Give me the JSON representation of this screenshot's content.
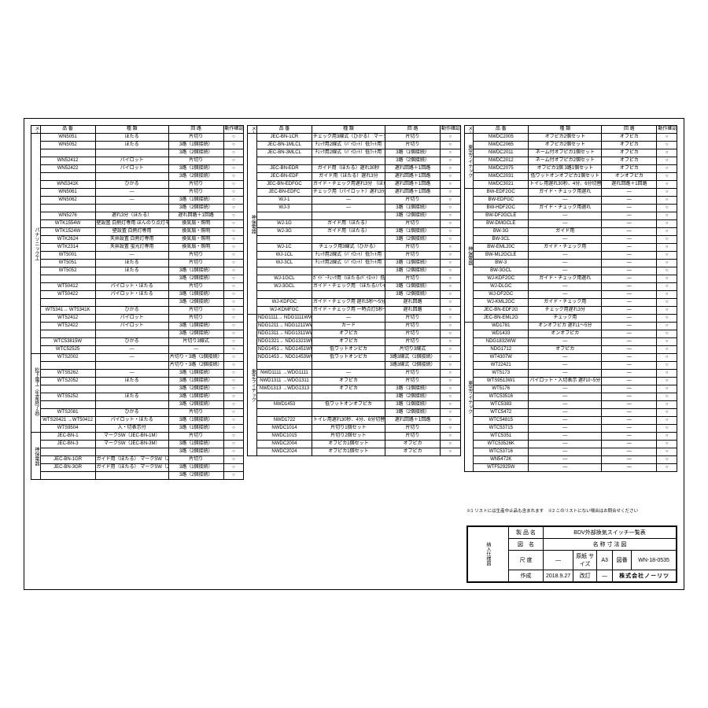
{
  "headers": {
    "maker": "メーカー",
    "part": "品 番",
    "type": "種 類",
    "circuit": "回 路",
    "check": "動作確認"
  },
  "col1_groups": [
    {
      "maker": "パナソニック工",
      "rows": [
        [
          "WN5051",
          "ほたる",
          "片切り",
          "○"
        ],
        [
          "WN5052",
          "ほたる",
          "3路（1個接続）",
          "○"
        ],
        [
          "",
          "",
          "3路（2個接続）",
          "○"
        ],
        [
          "WN52412",
          "パイロット",
          "片切り",
          "○"
        ],
        [
          "WN52422",
          "パイロット",
          "3路（1個接続）",
          "○"
        ],
        [
          "",
          "",
          "3路（2個接続）",
          "○"
        ],
        [
          "WN5341K",
          "ひかる",
          "片切り",
          "○"
        ],
        [
          "WN5061",
          "—",
          "片切り",
          "○"
        ],
        [
          "WN5062",
          "—",
          "3路（1個接続）",
          "○"
        ],
        [
          "",
          "",
          "3路（2個接続）",
          "○"
        ],
        [
          "WN5276",
          "遅れ3分（ほたる）",
          "遅れ回路＋1回路",
          "○"
        ],
        [
          "WTK1554W",
          "壁設置 白熱灯専用\nほんのり点灯モード付",
          "換気扇・照明",
          "○"
        ],
        [
          "WTK1524W",
          "壁設置 白熱灯専用",
          "換気扇・照明",
          "○"
        ],
        [
          "WTK2624",
          "天井設置 白熱灯専用",
          "換気扇・照明",
          "○"
        ],
        [
          "WTK2314",
          "天井設置 蛍光灯専用",
          "換気扇・照明",
          "○"
        ],
        [
          "WT5001",
          "—",
          "片切り",
          "○"
        ],
        [
          "WT5051",
          "ほたる",
          "片切り",
          "○"
        ],
        [
          "WT5052",
          "ほたる",
          "3路（1個接続）",
          "○"
        ],
        [
          "",
          "",
          "3路（2個接続）",
          "○"
        ],
        [
          "WT50412",
          "パイロット・ほたる",
          "片切り",
          "○"
        ],
        [
          "WT50422",
          "パイロット・ほたる",
          "3路（1個接続）",
          "○"
        ],
        [
          "",
          "",
          "3路（2個接続）",
          "○"
        ],
        [
          "WT5341→\nWT5341K",
          "ひかる",
          "片切り",
          "○"
        ],
        [
          "WT52412",
          "パイロット",
          "片切り",
          "○"
        ],
        [
          "WT52422",
          "パイロット",
          "3路（1個接続）",
          "○"
        ],
        [
          "",
          "",
          "3路（2個接続）",
          "○"
        ],
        [
          "WTC53815W",
          "ひかる",
          "片切り3線式",
          "○"
        ],
        [
          "WTC52525",
          "—",
          "—",
          "○"
        ]
      ]
    },
    {
      "maker": "松下電工（生産終了品）",
      "rows": [
        [
          "WTS2002",
          "—",
          "片切り・3路（1個接続）",
          "○"
        ],
        [
          "",
          "",
          "片切り・3路（2個接続）",
          "○"
        ],
        [
          "WTS5262",
          "—",
          "3路（1個接続）",
          "○"
        ],
        [
          "WTS2052",
          "ほたる",
          "3路（1個接続）",
          "○"
        ],
        [
          "",
          "",
          "3路（2個接続）",
          "○"
        ],
        [
          "WTS5252",
          "ほたる",
          "3路（1個接続）",
          "○"
        ],
        [
          "",
          "",
          "3路（2個接続）",
          "○"
        ],
        [
          "WTS2081",
          "ひかる",
          "片切り",
          "○"
        ],
        [
          "WTS20421\n→WT50412",
          "パイロット・ほたる",
          "3路（1個接続）",
          "○"
        ],
        [
          "WTS9504",
          "入・切表示付",
          "3路（1個接続）",
          "○"
        ]
      ]
    },
    {
      "maker": "神保電器",
      "rows": [
        [
          "JEC-BN-1",
          "マークSW（JEC-BN-1M）",
          "片切り",
          "○"
        ],
        [
          "JEC-BN-3",
          "マークSW（JEC-BN-3M）",
          "3路（1個接続）",
          "○"
        ],
        [
          "",
          "",
          "3路（2個接続）",
          "○"
        ],
        [
          "JEC-BN-1GR",
          "ガイド用（ほたる）\nマークSW（JEC-BN-1MGR）",
          "片切り",
          "○"
        ],
        [
          "JEC-BN-3GR",
          "ガイド用（ほたる）\nマークSW（JEC-BN-3MGR）",
          "3路（1個接続）",
          "○"
        ],
        [
          "",
          "",
          "3路（2個接続）",
          "○"
        ]
      ]
    }
  ],
  "col2_groups": [
    {
      "maker": "神保電器",
      "rows": [
        [
          "JEC-BN-1CR",
          "チェック用3線式（ひかる）\nマークSW（JEC-BN-1MCR）",
          "片切り",
          "○"
        ],
        [
          "JEC-BN-1MLCL",
          "ﾁｪｯｸ用2線式（ﾊﾟｲﾛｯﾄ）低ﾜｯﾄ用",
          "片切り",
          "○"
        ],
        [
          "JEC-BN-3MLCL",
          "ﾁｪｯｸ用2線式（ﾊﾟｲﾛｯﾄ）低ﾜｯﾄ用",
          "3路（1個接続）",
          "○"
        ],
        [
          "",
          "",
          "3路（2個接続）",
          "○"
        ],
        [
          "JEC-BN-EDR",
          "ガイド用（ほたる）遅れ30秒",
          "遅れ回路＋1回路",
          "○"
        ],
        [
          "JEC-BN-EDF",
          "ガイド用（ほたる）遅れ3分",
          "遅れ回路＋1回路",
          "○"
        ],
        [
          "JEC-BN-EDFGC",
          "ガイド・チェック用遅れ3分\n（ほたる/パイロット）",
          "遅れ回路＋1回路",
          "○"
        ],
        [
          "JEC-BN-EDFC",
          "チェック用（パイロット）遅れ3分",
          "遅れ回路＋1回路",
          "○"
        ],
        [
          "WJ-1",
          "—",
          "片切り",
          "○"
        ],
        [
          "WJ-3",
          "—",
          "3路（1個接続）",
          "○"
        ],
        [
          "",
          "",
          "3路（2個接続）",
          "○"
        ],
        [
          "WJ-1G",
          "ガイド用（ほたる）",
          "片切り",
          "○"
        ],
        [
          "WJ-3G",
          "ガイド用（ほたる）",
          "3路（1個接続）",
          "○"
        ],
        [
          "",
          "",
          "3路（2個接続）",
          "○"
        ],
        [
          "WJ-1C",
          "チェック用3線式（ひかる）",
          "片切り",
          "○"
        ],
        [
          "WJ-1CL",
          "ﾁｪｯｸ用2線式（ﾊﾟｲﾛｯﾄ）低ﾜｯﾄ用",
          "片切り",
          "○"
        ],
        [
          "WJ-3CL",
          "ﾁｪｯｸ用2線式（ﾊﾟｲﾛｯﾄ）低ﾜｯﾄ用",
          "3路（1個接続）",
          "○"
        ],
        [
          "",
          "",
          "3路（2個接続）",
          "○"
        ],
        [
          "WJ-1GCL",
          "ｶﾞｲﾄﾞ･ﾁｪｯｸ用（ほたる/ﾊﾟｲﾛｯﾄ）低ﾜｯﾄ用",
          "片切り",
          "○"
        ],
        [
          "WJ-3GCL",
          "ガイド・チェック用\n（ほたる/パイロット）低ワット用",
          "3路（1個接続）",
          "○"
        ],
        [
          "",
          "",
          "3路（2個接続）",
          "○"
        ],
        [
          "WJ-KDFGC",
          "ガイド・チェック用\n遅れ5秒〜5分可変\n（ほたる/パイロット）",
          "遅れ回路",
          "○"
        ],
        [
          "WJ-KDMFGC",
          "ガイド・チェック用\n一時点灯5秒〜5分可変\n（ほたる/パイロット）",
          "遅れ回路",
          "○"
        ]
      ]
    },
    {
      "maker": "東芝ライテック",
      "rows": [
        [
          "NDG1111→\nNDG1111WW",
          "—",
          "片切り",
          "○"
        ],
        [
          "NDG1211→\nNDG1211WW",
          "カード",
          "片切り",
          "○"
        ],
        [
          "NDG1311→\nNDG1311WW",
          "オフピカ",
          "片切り",
          "○"
        ],
        [
          "NDG1321→\nNDG1321WW",
          "オフピカ",
          "片切り",
          "○"
        ],
        [
          "NDG1451→\nNDG1451WW",
          "低ワットオンピカ",
          "片切り3線式",
          "○"
        ],
        [
          "NDG1453→\nNDG1453WW",
          "低ワットオンピカ",
          "3路3線式（1個接続）",
          "○"
        ],
        [
          "",
          "",
          "3路3線式（2個接続）",
          "○"
        ],
        [
          "NWD1111\n→WDG1111",
          "—",
          "片切り",
          "○"
        ],
        [
          "NWD1311\n→WDG1311",
          "オフピカ",
          "片切り",
          "○"
        ],
        [
          "NWD1313\n→WDG1313",
          "オフピカ",
          "3路（1個接続）",
          "○"
        ],
        [
          "",
          "",
          "3路（2個接続）",
          "○"
        ],
        [
          "NWD1453",
          "低ワットオンオフピカ",
          "3路（1個接続）",
          "○"
        ],
        [
          "",
          "",
          "3路（2個接続）",
          "○"
        ],
        [
          "NWD1722",
          "トイレ用遅れ30秒、4分、6分切替",
          "遅れ回路＋1回路",
          "○"
        ],
        [
          "NWDC1014",
          "片切り1個セット",
          "片切り",
          "○"
        ],
        [
          "NWDC1015",
          "片切り2個セット",
          "片切り",
          "○"
        ],
        [
          "NWDC2004",
          "オフピカ1個セット",
          "オフピカ",
          "○"
        ],
        [
          "NWDC2024",
          "オフピカ1個セット",
          "オフピカ",
          "○"
        ]
      ]
    }
  ],
  "col3_groups": [
    {
      "maker": "東芝ライテック",
      "rows": [
        [
          "NWDC2005",
          "オフピカ2個セット",
          "オフピカ",
          "○"
        ],
        [
          "NWDC2065",
          "オフピカ2個セット",
          "オフピカ",
          "○"
        ],
        [
          "NWDC2011",
          "ネーム付オフピカ1個セット",
          "オフピカ",
          "○"
        ],
        [
          "NWDC2012",
          "ネーム付オフピカ2個セット",
          "オフピカ",
          "○"
        ],
        [
          "NWDC2075",
          "オフピカ1個 3路1個セット",
          "オフピカ",
          "○"
        ],
        [
          "NWDC2031",
          "低ワットオンオフピカ1個セット",
          "オンオフピカ",
          "○"
        ],
        [
          "NWDC3021",
          "トイレ用遅れ30秒、4分、6分切替",
          "遅れ回路＋1回路",
          "○"
        ]
      ]
    },
    {
      "maker": "神保電器",
      "rows": [
        [
          "BW-EDF2GC",
          "ガイド・チェック用遅れ",
          "—",
          "○"
        ],
        [
          "BW-EDFGC",
          "—",
          "—",
          "○"
        ],
        [
          "BW-HDF2GC",
          "ガイド・チェック用遅れ",
          "—",
          "○"
        ],
        [
          "BW-DF2GCLE",
          "—",
          "—",
          "○"
        ],
        [
          "BW-DMGCLE",
          "—",
          "—",
          "○"
        ],
        [
          "BW-3G",
          "ガイド用",
          "—",
          "○"
        ],
        [
          "BW-3CL",
          "—",
          "—",
          "○"
        ],
        [
          "BW-EML20C",
          "ガイド・チェック用",
          "—",
          "○"
        ],
        [
          "BW-ML2GCLE",
          "—",
          "—",
          "○"
        ],
        [
          "BW-3",
          "—",
          "—",
          "○"
        ],
        [
          "BW-3GCL",
          "—",
          "—",
          "○"
        ],
        [
          "WJ-KDF2GC",
          "ガイド・チェック用遅れ",
          "—",
          "○"
        ],
        [
          "WJ-DLGC",
          "—",
          "—",
          "○"
        ],
        [
          "WJ-DF2GC",
          "—",
          "—",
          "○"
        ],
        [
          "WJ-KML2GC",
          "ガイド・チェック用",
          "—",
          "○"
        ],
        [
          "JEC-BN-EDF2G",
          "チェック用遅れ3分",
          "—",
          "○"
        ],
        [
          "JEC-BN-EML2G",
          "チェック用",
          "—",
          "○"
        ]
      ]
    },
    {
      "maker": "東芝ライテック",
      "rows": [
        [
          "WD1781",
          "オンオフピカ 遅れ1〜5分",
          "—",
          "○"
        ],
        [
          "WD1433",
          "オンオフピカ",
          "—",
          "○"
        ],
        [
          "NDG1832WW",
          "—",
          "—",
          "○"
        ],
        [
          "NDG1712",
          "オフピカ",
          "—",
          "○"
        ],
        [
          "WT4307W",
          "—",
          "—",
          "○"
        ],
        [
          "WT22421",
          "—",
          "—",
          "○"
        ],
        [
          "WT5173",
          "—",
          "—",
          "○"
        ],
        [
          "WTS9513W1",
          "パイロット・入切表示 遅れ0~5分",
          "—",
          "○"
        ],
        [
          "WT5176",
          "—",
          "—",
          "○"
        ],
        [
          "WTC53516",
          "—",
          "—",
          "○"
        ],
        [
          "WTC5383",
          "—",
          "—",
          "○"
        ],
        [
          "WTC5472",
          "—",
          "—",
          "○"
        ],
        [
          "WTC54815",
          "—",
          "—",
          "○"
        ],
        [
          "WTC53715",
          "—",
          "—",
          "○"
        ],
        [
          "WTC5351",
          "—",
          "—",
          "○"
        ],
        [
          "WTC53526K",
          "—",
          "—",
          "○"
        ],
        [
          "WTC53716",
          "—",
          "—",
          "○"
        ],
        [
          "WN5472K",
          "—",
          "—",
          "○"
        ],
        [
          "WTF52925W",
          "—",
          "—",
          "○"
        ]
      ]
    }
  ],
  "note": "※1 リストには生産中止品も含まれます　※2 このリストにない場合はお問合せください",
  "titleblock": {
    "left_label": "納入仕様図",
    "product_label": "製 品 名",
    "product": "BDV外部換気スイッチ一覧表",
    "drawing_label": "図　名",
    "drawing": "名 称 寸 法 図",
    "scale_label": "尺 度",
    "scale": "—",
    "papersize_label": "原紙\nサイズ",
    "papersize": "A3",
    "drawno_label": "図番",
    "drawno": "WN-18-0535",
    "date_label": "作成",
    "date": "2018.9.27",
    "rev_label": "改訂",
    "rev": "—",
    "brand": "株式会社ノーリツ"
  }
}
